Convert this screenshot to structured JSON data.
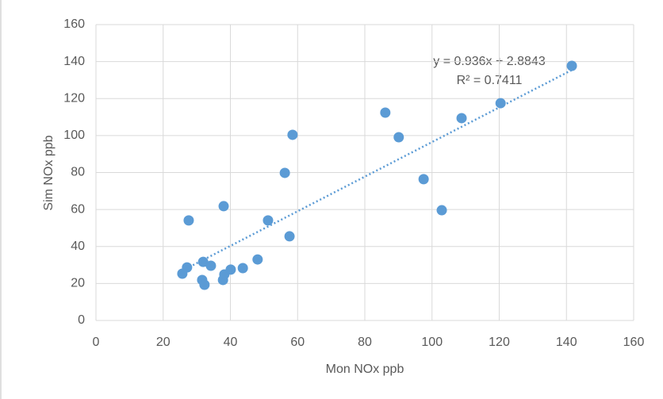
{
  "chart_data": {
    "type": "scatter",
    "x_label": "Mon NOx ppb",
    "y_label": "Sim NOx ppb",
    "series": [
      {
        "color": "#5b9bd5",
        "x": [
          25.7,
          27.1,
          27.6,
          31.9,
          31.6,
          32.3,
          34.2,
          38.0,
          37.8,
          38.2,
          40.1,
          43.7,
          48.1,
          51.2,
          57.6,
          56.2,
          58.5,
          86.1,
          90.1,
          97.5,
          102.9,
          108.8,
          120.4,
          141.6
        ],
        "values": [
          25.3,
          28.7,
          54.1,
          31.7,
          21.9,
          19.3,
          29.6,
          61.8,
          21.9,
          24.9,
          27.5,
          28.3,
          33.0,
          54.1,
          45.5,
          79.8,
          100.4,
          112.4,
          99.1,
          76.4,
          59.6,
          109.4,
          117.5,
          137.7
        ]
      }
    ],
    "trendline": {
      "slope": 0.936,
      "intercept": 2.8843,
      "equation": "y = 0.936x + 2.8843",
      "r2": "R² = 0.7411"
    },
    "xlim": [
      0,
      160
    ],
    "xticks": [
      0,
      20,
      40,
      60,
      80,
      100,
      120,
      140,
      160
    ],
    "ylim": [
      0,
      160
    ],
    "yticks": [
      0,
      20,
      40,
      60,
      80,
      100,
      120,
      140,
      160
    ],
    "grid": true
  }
}
